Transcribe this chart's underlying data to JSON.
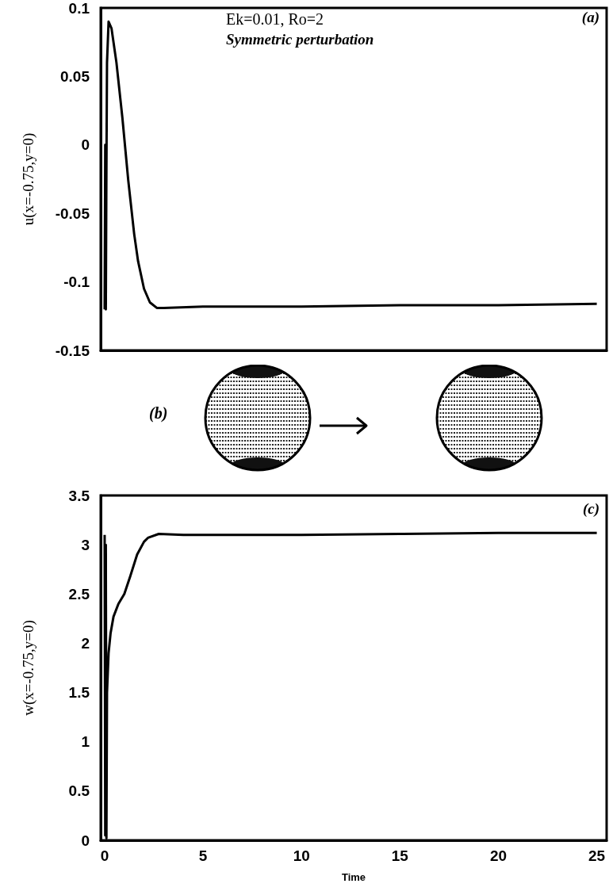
{
  "chart_data": [
    {
      "type": "line",
      "ylabel": "u(x=-0.75,y=0)",
      "annotations": [
        "Ek=0.01, Ro=2",
        "Symmetric perturbation",
        "(a)"
      ],
      "xlim": [
        -0.2,
        25.5
      ],
      "ylim": [
        -0.15,
        0.1
      ],
      "yticks": [
        -0.15,
        -0.1,
        -0.05,
        0,
        0.05,
        0.1
      ],
      "tick_labels": "y",
      "grid": false,
      "marker": "none",
      "line_style": "solid",
      "series": [
        {
          "color": "#000000",
          "x": [
            0,
            0.03,
            0.06,
            0.09,
            0.12,
            0.2,
            0.35,
            0.6,
            0.9,
            1.2,
            1.5,
            1.7,
            2.0,
            2.3,
            2.65,
            3,
            5,
            10,
            15,
            20,
            25
          ],
          "values": [
            -0.12,
            0,
            -0.12,
            -0.02,
            0.06,
            0.09,
            0.085,
            0.06,
            0.02,
            -0.026,
            -0.065,
            -0.085,
            -0.105,
            -0.115,
            -0.119,
            -0.119,
            -0.118,
            -0.118,
            -0.117,
            -0.117,
            -0.116
          ]
        }
      ]
    },
    {
      "type": "line",
      "xlabel": "Time",
      "ylabel": "w(x=-0.75,y=0)",
      "annotations": [
        "(b)",
        "(c)"
      ],
      "xlim": [
        -0.2,
        25.5
      ],
      "xticks": [
        0,
        5,
        10,
        15,
        20,
        25
      ],
      "ylim": [
        0,
        3.5
      ],
      "yticks": [
        0,
        0.5,
        1,
        1.5,
        2,
        2.5,
        3,
        3.5
      ],
      "grid": false,
      "marker": "none",
      "line_style": "solid",
      "series": [
        {
          "color": "#000000",
          "x": [
            0,
            0.03,
            0.06,
            0.09,
            0.12,
            0.2,
            0.3,
            0.45,
            0.7,
            1.0,
            1.3,
            1.65,
            2.0,
            2.2,
            2.75,
            4,
            10,
            15,
            20,
            25
          ],
          "values": [
            3.1,
            0.05,
            3.0,
            0.02,
            1.5,
            1.9,
            2.1,
            2.27,
            2.4,
            2.5,
            2.68,
            2.9,
            3.03,
            3.07,
            3.11,
            3.1,
            3.1,
            3.11,
            3.12,
            3.12
          ]
        }
      ]
    }
  ]
}
